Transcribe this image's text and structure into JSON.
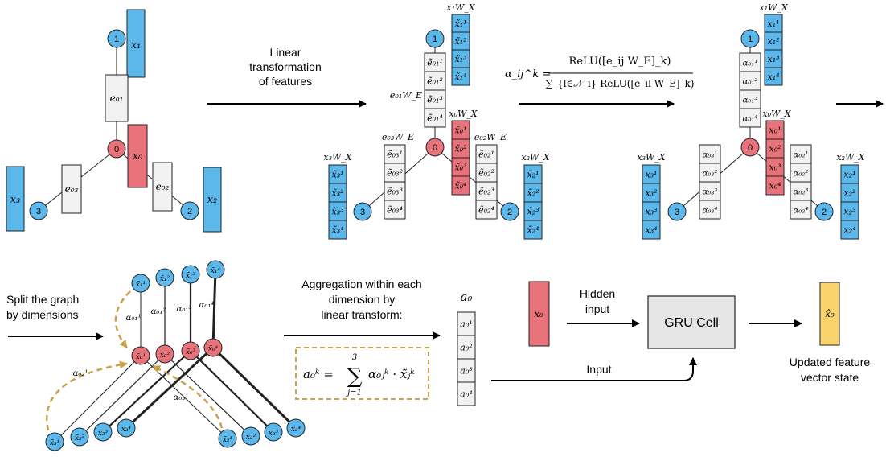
{
  "colors": {
    "blue": "#5cb7ea",
    "red": "#e8737b",
    "gray": "#f2f2f2",
    "yellow": "#f8d36c",
    "dashed": "#c9a24a",
    "stroke": "#222222"
  },
  "panel1": {
    "nodes": {
      "n0": "0",
      "n1": "1",
      "n2": "2",
      "n3": "3"
    },
    "features": {
      "x0": "x₀",
      "x1": "x₁",
      "x2": "x₂",
      "x3": "x₃"
    },
    "edges": {
      "e01": "e₀₁",
      "e02": "e₀₂",
      "e03": "e₀₃"
    }
  },
  "arrow1": {
    "line1": "Linear",
    "line2": "transformation",
    "line3": "of features"
  },
  "panel2": {
    "x1_label": "x₁W_X",
    "x0_label": "x₀W_X",
    "x2_label": "x₂W_X",
    "x3_label": "x₃W_X",
    "e01_label": "e₀₁W_E",
    "e02_label": "e₀₂W_E",
    "e03_label": "e₀₃W_E",
    "x1_cells": [
      "x̃₁¹",
      "x̃₁²",
      "x̃₁³",
      "x̃₁⁴"
    ],
    "x0_cells": [
      "x̃₀¹",
      "x̃₀²",
      "x̃₀³",
      "x̃₀⁴"
    ],
    "x2_cells": [
      "x̃₂¹",
      "x̃₂²",
      "x̃₂³",
      "x̃₂⁴"
    ],
    "x3_cells": [
      "x̃₃¹",
      "x̃₃²",
      "x̃₃³",
      "x̃₃⁴"
    ],
    "e01_cells": [
      "ẽ₀₁¹",
      "ẽ₀₁²",
      "ẽ₀₁³",
      "ẽ₀₁⁴"
    ],
    "e02_cells": [
      "ẽ₀₂¹",
      "ẽ₀₂²",
      "ẽ₀₂³",
      "ẽ₀₂⁴"
    ],
    "e03_cells": [
      "ẽ₀₃¹",
      "ẽ₀₃²",
      "ẽ₀₃³",
      "ẽ₀₃⁴"
    ]
  },
  "formula_attention": {
    "lhs": "α_ij^k =",
    "numerator": "ReLU([e_ij W_E]_k)",
    "denominator": "∑_{l∈𝒩_i} ReLU([e_il W_E]_k)"
  },
  "panel3": {
    "x1_label": "x₁W_X",
    "x0_label": "x₀W_X",
    "x2_label": "x₂W_X",
    "x3_label": "x₃W_X",
    "x1_cells": [
      "x₁¹",
      "x₁²",
      "x₁³",
      "x₁⁴"
    ],
    "x0_cells": [
      "x₀¹",
      "x₀²",
      "x₀³",
      "x₀⁴"
    ],
    "x2_cells": [
      "x₂¹",
      "x₂²",
      "x₂³",
      "x₂⁴"
    ],
    "x3_cells": [
      "x₃¹",
      "x₃²",
      "x₃³",
      "x₃⁴"
    ],
    "a01_cells": [
      "α₀₁¹",
      "α₀₁²",
      "α₀₁³",
      "α₀₁⁴"
    ],
    "a02_cells": [
      "α₀₂¹",
      "α₀₂²",
      "α₀₂³",
      "α₀₂⁴"
    ],
    "a03_cells": [
      "α₀₃¹",
      "α₀₃²",
      "α₀₃³",
      "α₀₃⁴"
    ]
  },
  "split": {
    "line1": "Split the graph",
    "line2": "by dimensions"
  },
  "split_graph": {
    "top_nodes": [
      "x̃₁¹",
      "x̃₁²",
      "x̃₁³",
      "x̃₁⁴"
    ],
    "mid_nodes": [
      "x̃₀¹",
      "x̃₀²",
      "x̃₀³",
      "x̃₀⁴"
    ],
    "left_nodes": [
      "x̃₃¹",
      "x̃₃²",
      "x̃₃³",
      "x̃₃⁴"
    ],
    "right_nodes": [
      "x̃₂¹",
      "x̃₂²",
      "x̃₂³",
      "x̃₂⁴"
    ],
    "edge_labels": [
      "α₀₁¹",
      "α₀₁²",
      "α₀₁³",
      "α₀₁⁴"
    ],
    "alpha02": "α₀₂¹",
    "alpha03": "α₀₃¹"
  },
  "aggregation": {
    "line1": "Aggregation within each",
    "line2": "dimension by",
    "line3": "linear transform:",
    "formula_lhs": "a₀ᵏ =",
    "formula_sum": "∑",
    "formula_upper": "3",
    "formula_lower": "j=1",
    "formula_rhs": "α₀ⱼᵏ · x̃ⱼᵏ"
  },
  "a0": {
    "title": "a₀",
    "cells": [
      "a₀¹",
      "a₀²",
      "a₀³",
      "a₀⁴"
    ]
  },
  "gru": {
    "x0": "x₀",
    "hidden_label1": "Hidden",
    "hidden_label2": "input",
    "cell_label": "GRU Cell",
    "input_label": "Input",
    "output": "x̂₀",
    "updated1": "Updated feature",
    "updated2": "vector state"
  }
}
